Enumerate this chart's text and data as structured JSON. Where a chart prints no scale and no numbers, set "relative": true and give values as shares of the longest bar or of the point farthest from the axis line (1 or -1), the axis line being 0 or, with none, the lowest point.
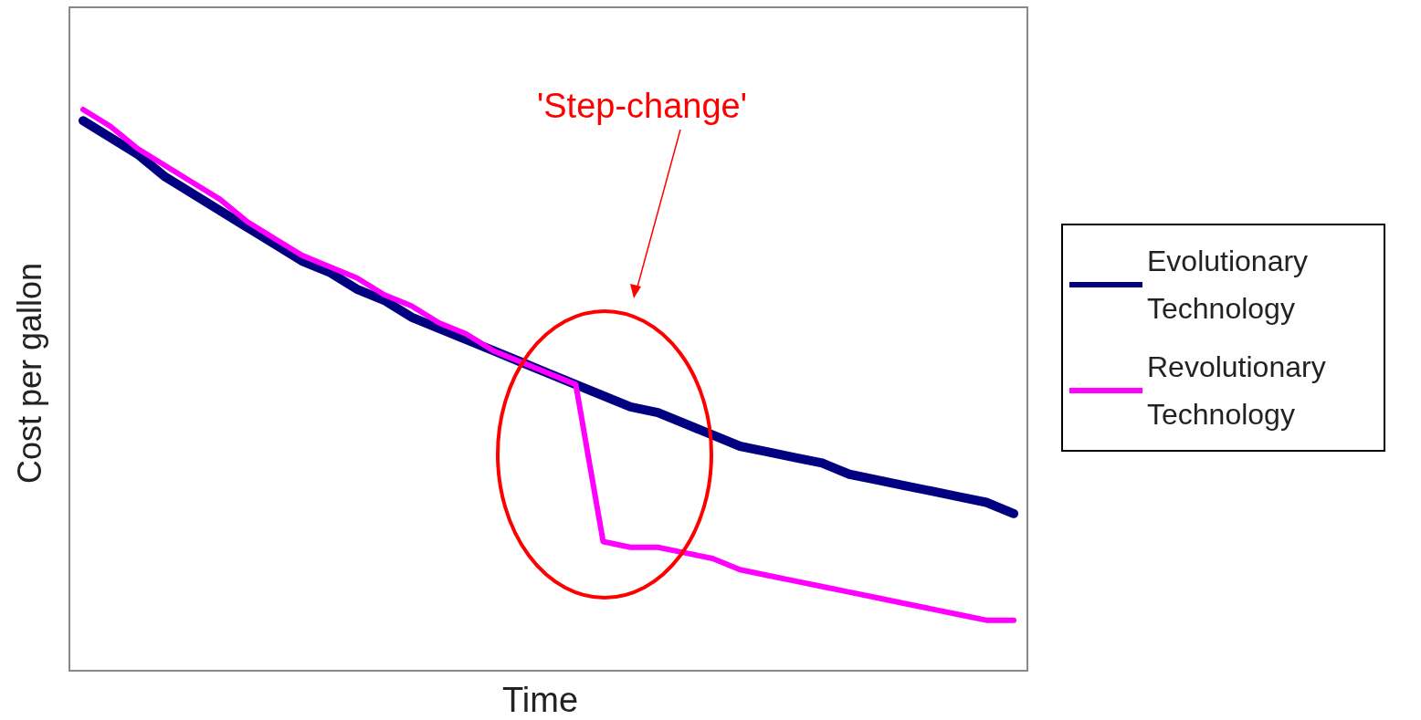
{
  "chart_data": {
    "type": "line",
    "relative": true,
    "xlabel": "Time",
    "ylabel": "Cost per gallon",
    "categories": [
      null,
      null,
      null,
      null,
      null,
      null,
      null,
      null,
      null,
      null,
      null,
      null,
      null,
      null,
      null,
      null,
      null,
      null,
      null,
      null,
      null,
      null,
      null,
      null,
      null,
      null,
      null,
      null,
      null,
      null,
      null,
      null,
      null,
      null,
      null
    ],
    "series": [
      {
        "name": "Evolutionary Technology",
        "color": "#000080",
        "values": [
          0.98,
          0.95,
          0.92,
          0.88,
          0.85,
          0.82,
          0.79,
          0.76,
          0.73,
          0.71,
          0.68,
          0.66,
          0.63,
          0.61,
          0.59,
          0.57,
          0.55,
          0.53,
          0.51,
          0.49,
          0.47,
          0.46,
          0.44,
          0.42,
          0.4,
          0.39,
          0.38,
          0.37,
          0.35,
          0.34,
          0.33,
          0.32,
          0.31,
          0.3,
          0.28
        ]
      },
      {
        "name": "Revolutionary Technology",
        "color": "#ff00ff",
        "values": [
          1,
          0.97,
          0.93,
          0.9,
          0.87,
          0.84,
          0.8,
          0.77,
          0.74,
          0.72,
          0.7,
          0.67,
          0.65,
          0.62,
          0.6,
          0.57,
          0.55,
          0.53,
          0.51,
          0.23,
          0.22,
          0.22,
          0.21,
          0.2,
          0.18,
          0.17,
          0.16,
          0.15,
          0.14,
          0.13,
          0.12,
          0.11,
          0.1,
          0.09,
          0.09
        ]
      }
    ],
    "annotations": [
      "'Step-change'"
    ],
    "legend": "right",
    "grid": false,
    "marker": "none",
    "line_style": "solid"
  }
}
